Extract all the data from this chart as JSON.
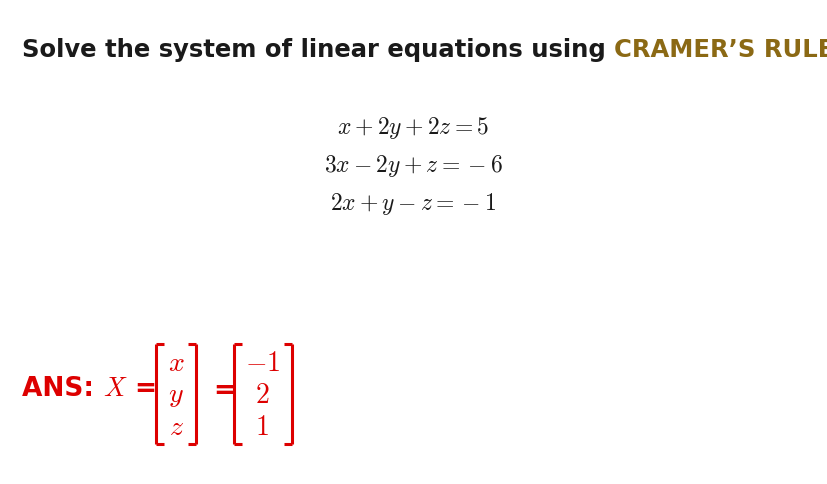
{
  "background_color": "#ffffff",
  "title_prefix": "Solve the system of linear equations using ",
  "title_highlight": "CRAMER’S RULE.",
  "title_prefix_color": "#1a1a1a",
  "title_highlight_color": "#8B6914",
  "title_fontsize": 17.5,
  "equations": [
    "$x + 2y + 2z = 5$",
    "$3x - 2y + z = -6$",
    "$2x + y - z = -1$"
  ],
  "eq_fontsize": 16,
  "eq_color": "#1a1a1a",
  "ans_color": "#dd0000",
  "ans_vars": [
    "x",
    "y",
    "z"
  ],
  "ans_vals": [
    "-1",
    "2",
    "1"
  ],
  "ans_fontsize": 16,
  "fig_width": 8.27,
  "fig_height": 4.85,
  "dpi": 100
}
